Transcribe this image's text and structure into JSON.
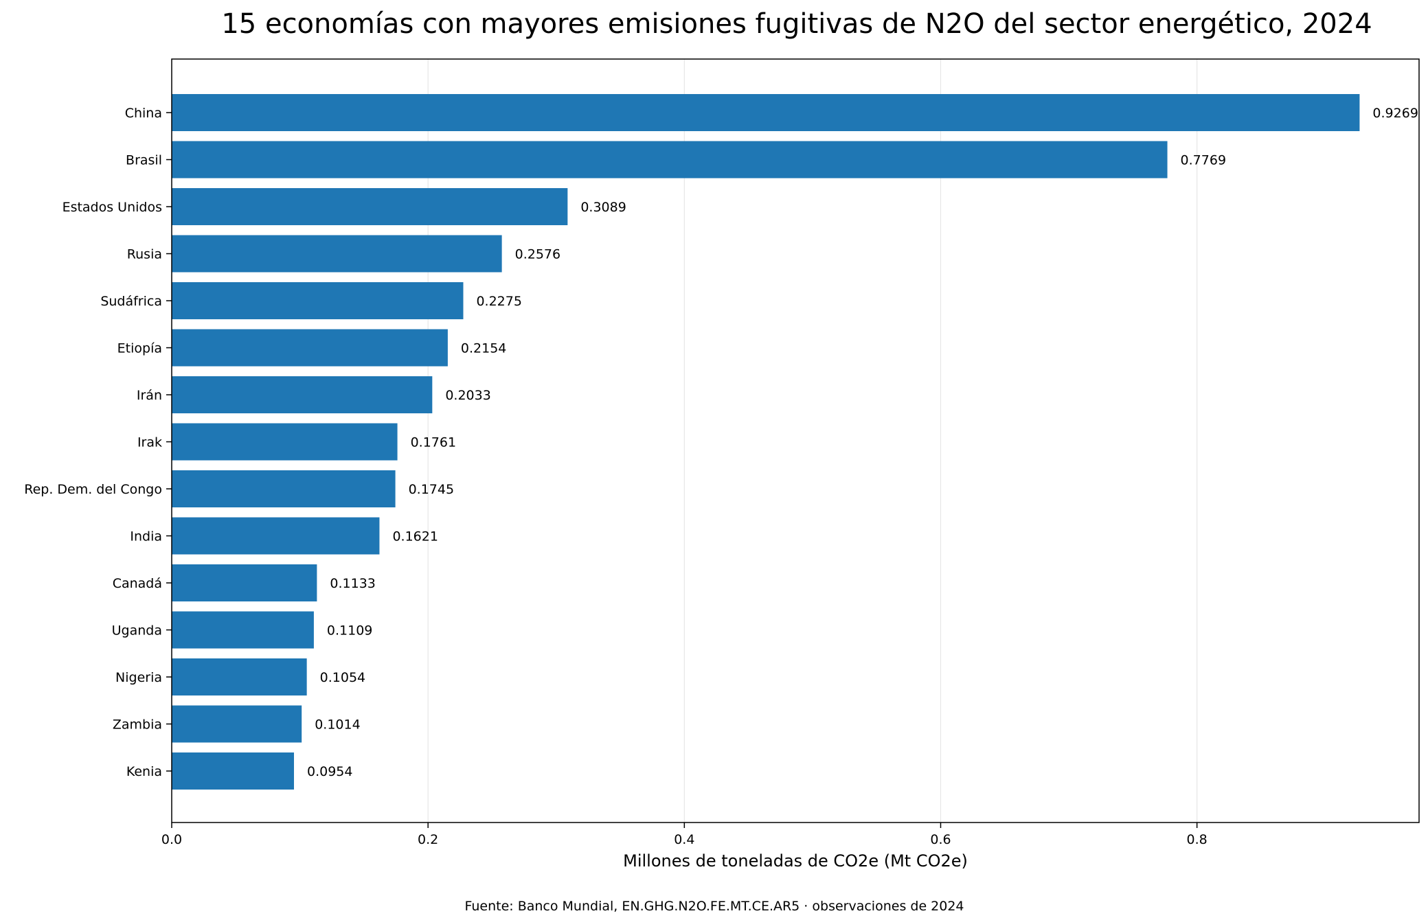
{
  "chart_data": {
    "type": "bar",
    "orientation": "horizontal",
    "title": "15 economías con mayores emisiones fugitivas de N2O del sector energético, 2024",
    "xlabel": "Millones de toneladas de CO2e (Mt CO2e)",
    "ylabel": "",
    "source": "Fuente: Banco Mundial, EN.GHG.N2O.FE.MT.CE.AR5 · observaciones de 2024",
    "categories": [
      "China",
      "Brasil",
      "Estados Unidos",
      "Rusia",
      "Sudáfrica",
      "Etiopía",
      "Irán",
      "Irak",
      "Rep. Dem. del Congo",
      "India",
      "Canadá",
      "Uganda",
      "Nigeria",
      "Zambia",
      "Kenia"
    ],
    "values": [
      0.9269,
      0.7769,
      0.3089,
      0.2576,
      0.2275,
      0.2154,
      0.2033,
      0.1761,
      0.1745,
      0.1621,
      0.1133,
      0.1109,
      0.1054,
      0.1014,
      0.0954
    ],
    "value_labels": [
      "0.9269",
      "0.7769",
      "0.3089",
      "0.2576",
      "0.2275",
      "0.2154",
      "0.2033",
      "0.1761",
      "0.1745",
      "0.1621",
      "0.1133",
      "0.1109",
      "0.1054",
      "0.1014",
      "0.0954"
    ],
    "xticks": [
      0.0,
      0.2,
      0.4,
      0.6,
      0.8
    ],
    "xtick_labels": [
      "0.0",
      "0.2",
      "0.4",
      "0.6",
      "0.8"
    ],
    "xlim": [
      0,
      0.9733
    ],
    "grid": "vertical",
    "bar_color": "#1f77b4",
    "grid_color": "#e6e6e6"
  }
}
